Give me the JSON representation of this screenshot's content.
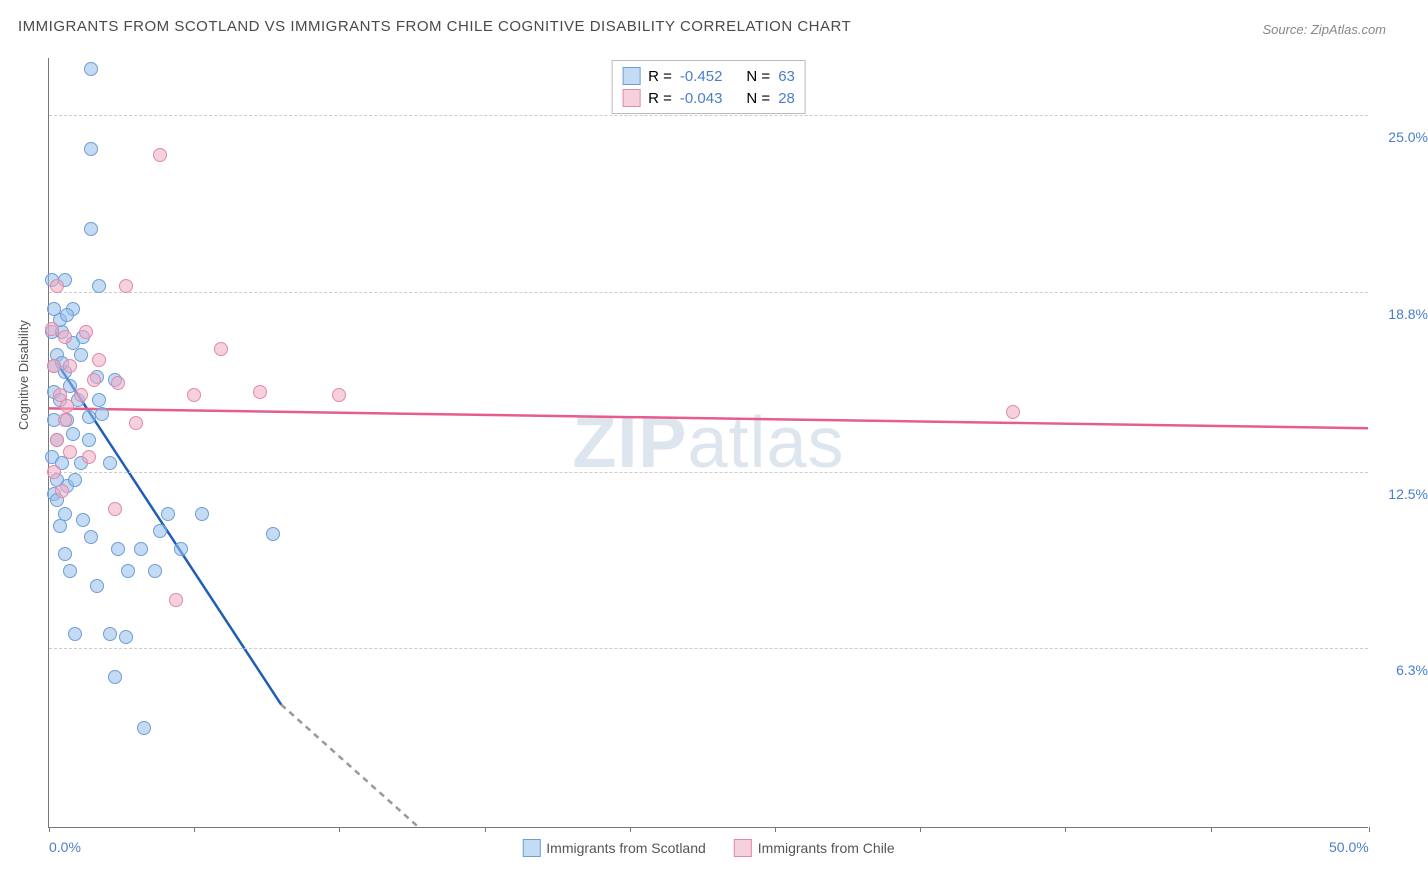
{
  "title": "IMMIGRANTS FROM SCOTLAND VS IMMIGRANTS FROM CHILE COGNITIVE DISABILITY CORRELATION CHART",
  "source": "Source: ZipAtlas.com",
  "ylabel": "Cognitive Disability",
  "watermark_parts": [
    "ZIP",
    "atlas"
  ],
  "chart": {
    "type": "scatter",
    "x_range": [
      0,
      50
    ],
    "y_range": [
      0,
      27
    ],
    "x_tick_positions_pct": [
      0,
      11,
      22,
      33,
      44,
      55,
      66,
      77,
      88,
      100
    ],
    "x_labels": [
      {
        "pos_pct": 0,
        "text": "0.0%"
      },
      {
        "pos_pct": 100,
        "text": "50.0%"
      }
    ],
    "y_gridlines": [
      {
        "value": 6.3,
        "label": "6.3%"
      },
      {
        "value": 12.5,
        "label": "12.5%"
      },
      {
        "value": 18.8,
        "label": "18.8%"
      },
      {
        "value": 25.0,
        "label": "25.0%"
      }
    ],
    "background_color": "#ffffff",
    "grid_color": "#cccccc",
    "axis_color": "#777777",
    "marker_size": 14,
    "marker_border_width": 1.5,
    "series": [
      {
        "name": "Immigrants from Scotland",
        "fill_color": "rgba(150,190,235,0.55)",
        "stroke_color": "#6b9fd8",
        "regression_color": "#1f5db9",
        "regression_dash_color": "#999999",
        "R": "-0.452",
        "N": "63",
        "regression": {
          "x1": 0.3,
          "y1": 16.3,
          "x2": 8.8,
          "y2": 4.3,
          "dash_to_x": 14.0,
          "dash_to_y": 0
        },
        "points": [
          [
            0.1,
            19.2
          ],
          [
            0.6,
            19.2
          ],
          [
            1.9,
            19.0
          ],
          [
            0.2,
            18.2
          ],
          [
            0.9,
            18.2
          ],
          [
            1.6,
            26.6
          ],
          [
            1.6,
            23.8
          ],
          [
            1.6,
            21.0
          ],
          [
            0.1,
            17.4
          ],
          [
            0.5,
            17.4
          ],
          [
            0.3,
            16.6
          ],
          [
            1.2,
            16.6
          ],
          [
            0.6,
            16.0
          ],
          [
            1.8,
            15.8
          ],
          [
            0.2,
            15.3
          ],
          [
            0.8,
            15.5
          ],
          [
            2.5,
            15.7
          ],
          [
            0.4,
            15.0
          ],
          [
            1.1,
            15.0
          ],
          [
            1.9,
            15.0
          ],
          [
            0.2,
            14.3
          ],
          [
            0.7,
            14.3
          ],
          [
            1.5,
            14.4
          ],
          [
            2.0,
            14.5
          ],
          [
            0.3,
            13.6
          ],
          [
            0.9,
            13.8
          ],
          [
            1.5,
            13.6
          ],
          [
            0.1,
            13.0
          ],
          [
            0.5,
            12.8
          ],
          [
            1.2,
            12.8
          ],
          [
            2.3,
            12.8
          ],
          [
            0.7,
            12.0
          ],
          [
            0.2,
            11.7
          ],
          [
            0.3,
            11.5
          ],
          [
            0.6,
            11.0
          ],
          [
            1.3,
            10.8
          ],
          [
            0.4,
            10.6
          ],
          [
            4.5,
            11.0
          ],
          [
            5.8,
            11.0
          ],
          [
            8.5,
            10.3
          ],
          [
            1.6,
            10.2
          ],
          [
            2.6,
            9.8
          ],
          [
            3.5,
            9.8
          ],
          [
            5.0,
            9.8
          ],
          [
            0.8,
            9.0
          ],
          [
            3.0,
            9.0
          ],
          [
            4.0,
            9.0
          ],
          [
            1.0,
            6.8
          ],
          [
            2.3,
            6.8
          ],
          [
            2.5,
            5.3
          ],
          [
            3.6,
            3.5
          ],
          [
            0.2,
            16.2
          ],
          [
            0.5,
            16.3
          ],
          [
            0.9,
            17.0
          ],
          [
            1.3,
            17.2
          ],
          [
            0.4,
            17.8
          ],
          [
            0.7,
            18.0
          ],
          [
            0.3,
            12.2
          ],
          [
            1.0,
            12.2
          ],
          [
            0.6,
            9.6
          ],
          [
            1.8,
            8.5
          ],
          [
            4.2,
            10.4
          ],
          [
            2.9,
            6.7
          ]
        ]
      },
      {
        "name": "Immigrants from Chile",
        "fill_color": "rgba(240,170,195,0.55)",
        "stroke_color": "#e28aa8",
        "regression_color": "#e75b8d",
        "R": "-0.043",
        "N": "28",
        "regression": {
          "x1": 0,
          "y1": 14.7,
          "x2": 50,
          "y2": 14.0
        },
        "points": [
          [
            4.2,
            23.6
          ],
          [
            0.3,
            19.0
          ],
          [
            2.9,
            19.0
          ],
          [
            0.1,
            17.5
          ],
          [
            0.6,
            17.2
          ],
          [
            1.4,
            17.4
          ],
          [
            6.5,
            16.8
          ],
          [
            0.2,
            16.2
          ],
          [
            0.8,
            16.2
          ],
          [
            1.7,
            15.7
          ],
          [
            2.6,
            15.6
          ],
          [
            0.4,
            15.2
          ],
          [
            1.2,
            15.2
          ],
          [
            5.5,
            15.2
          ],
          [
            8.0,
            15.3
          ],
          [
            11.0,
            15.2
          ],
          [
            0.6,
            14.3
          ],
          [
            3.3,
            14.2
          ],
          [
            36.5,
            14.6
          ],
          [
            0.3,
            13.6
          ],
          [
            0.8,
            13.2
          ],
          [
            1.5,
            13.0
          ],
          [
            0.2,
            12.5
          ],
          [
            0.5,
            11.8
          ],
          [
            2.5,
            11.2
          ],
          [
            4.8,
            8.0
          ],
          [
            0.7,
            14.8
          ],
          [
            1.9,
            16.4
          ]
        ]
      }
    ]
  },
  "legend_labels": {
    "R_prefix": "R =",
    "N_prefix": "N ="
  },
  "label_color": "#4a7ec9",
  "text_color": "#555555",
  "title_color": "#4a4a4a"
}
